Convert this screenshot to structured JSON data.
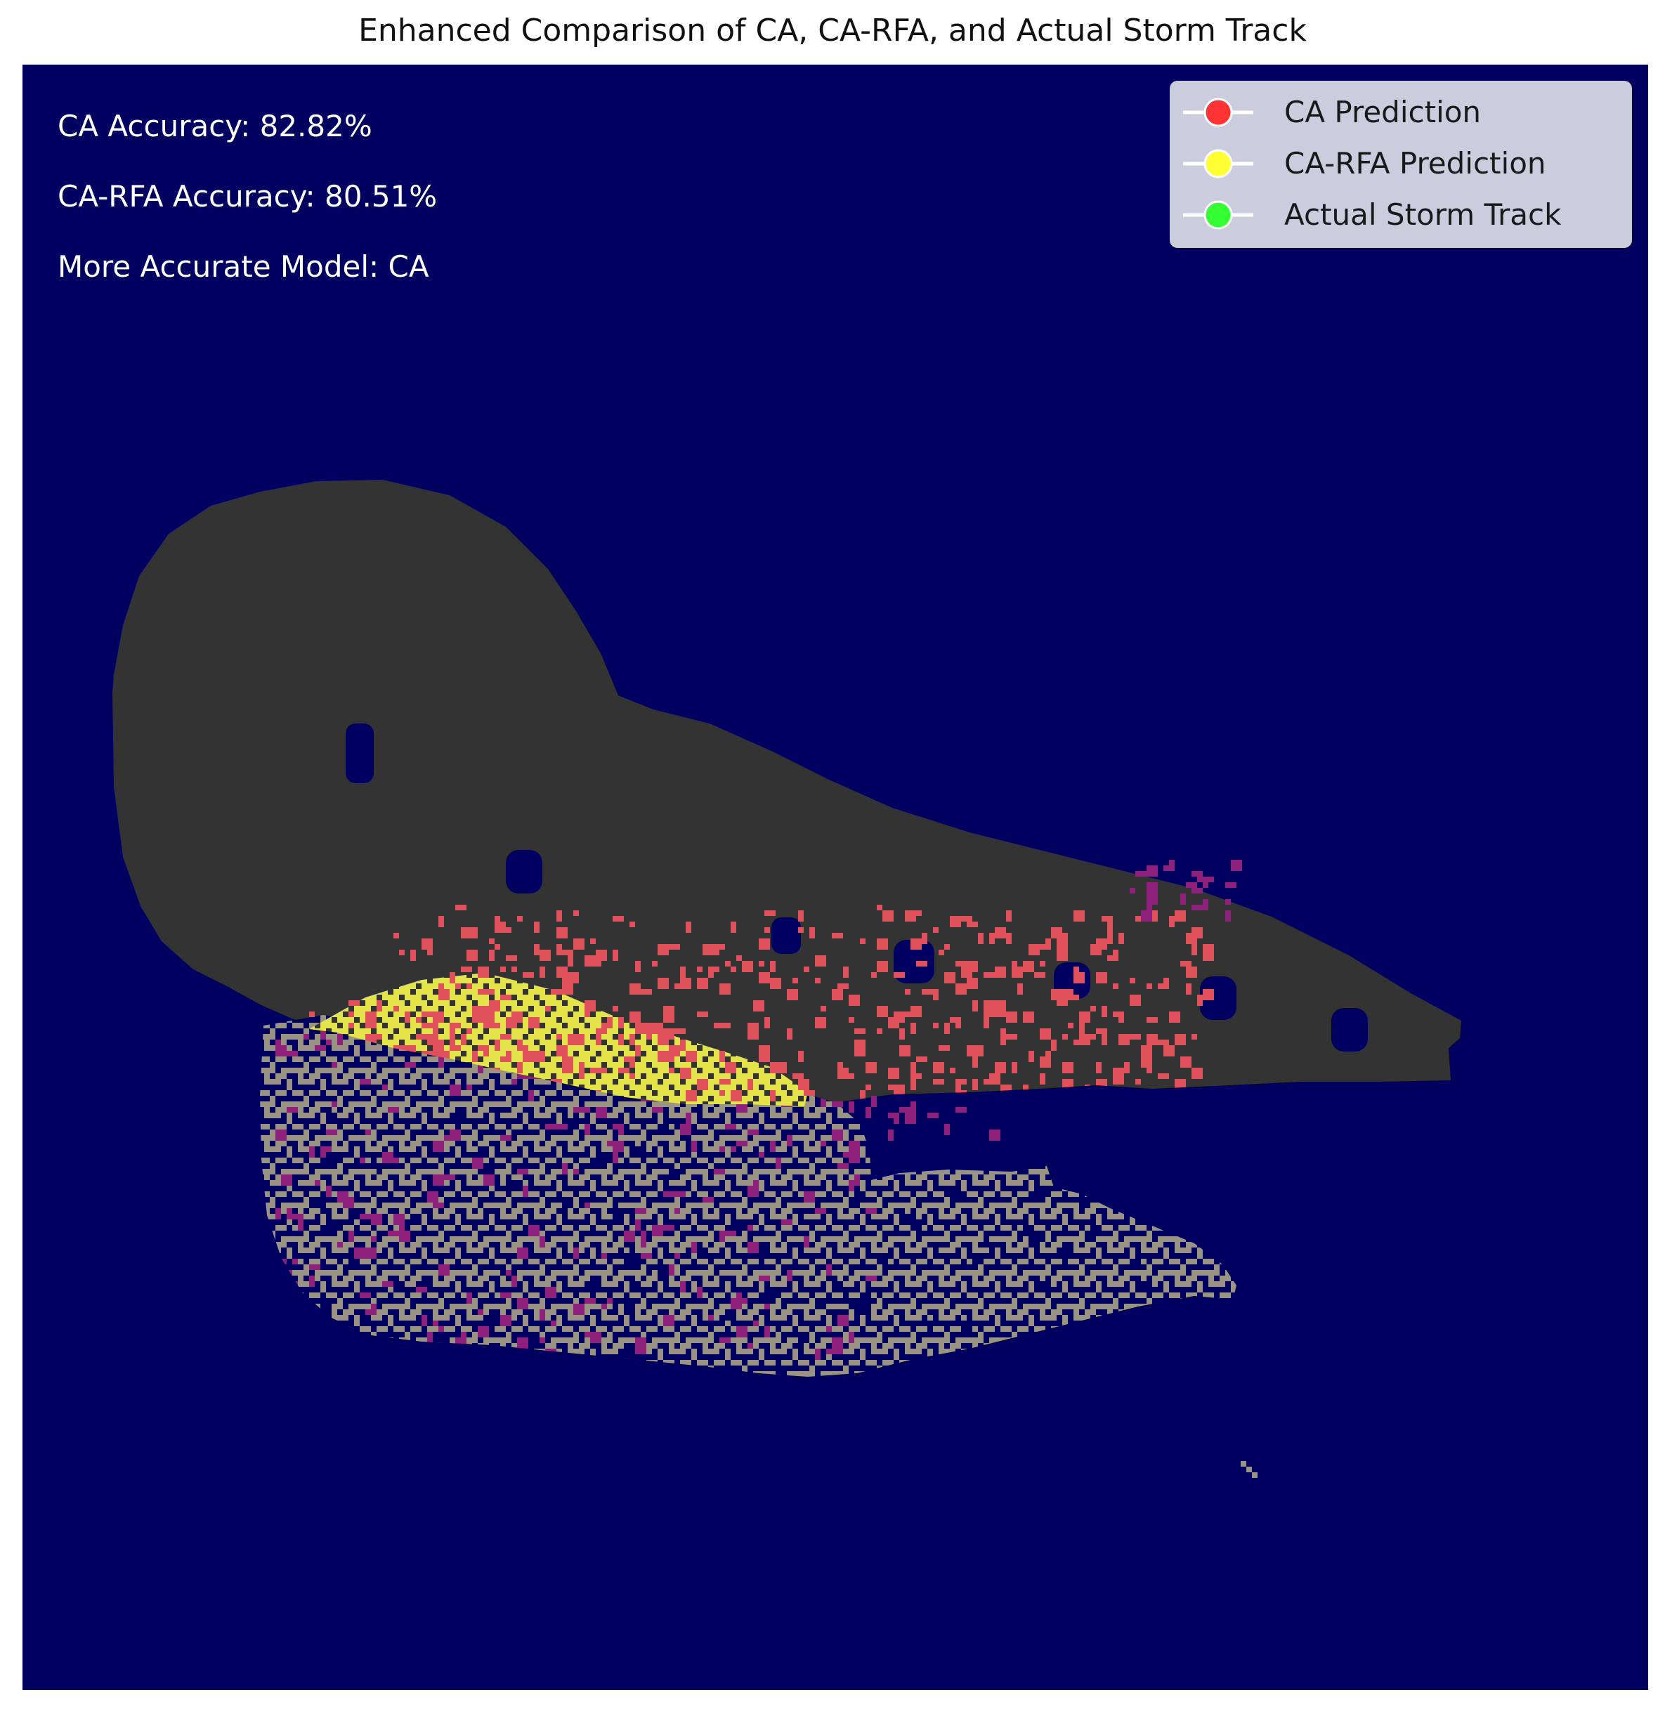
{
  "chart_data": {
    "type": "heatmap",
    "title": "Enhanced Comparison of CA, CA-RFA, and Actual Storm Track",
    "xlabel": "",
    "ylabel": "",
    "axes_visible": false,
    "grid": false,
    "background_color": "#000060",
    "legend": {
      "placement": "upper-right",
      "entries": [
        {
          "label": "CA Prediction",
          "color": "#ff3333"
        },
        {
          "label": "CA-RFA Prediction",
          "color": "#ffff33"
        },
        {
          "label": "Actual Storm Track",
          "color": "#33ff33"
        }
      ]
    },
    "annotations": [
      "CA Accuracy: 82.82%",
      "CA-RFA Accuracy: 80.51%",
      "More Accurate Model: CA"
    ],
    "regions": [
      {
        "name": "storm region",
        "color": "#333333"
      },
      {
        "name": "CA prediction cells",
        "color": "#e0505a"
      },
      {
        "name": "CA-RFA prediction cells",
        "color": "#e3e34a"
      },
      {
        "name": "actual track cells",
        "color": "#9a9484"
      },
      {
        "name": "overlap cells",
        "color": "#8e1f7a"
      }
    ]
  }
}
